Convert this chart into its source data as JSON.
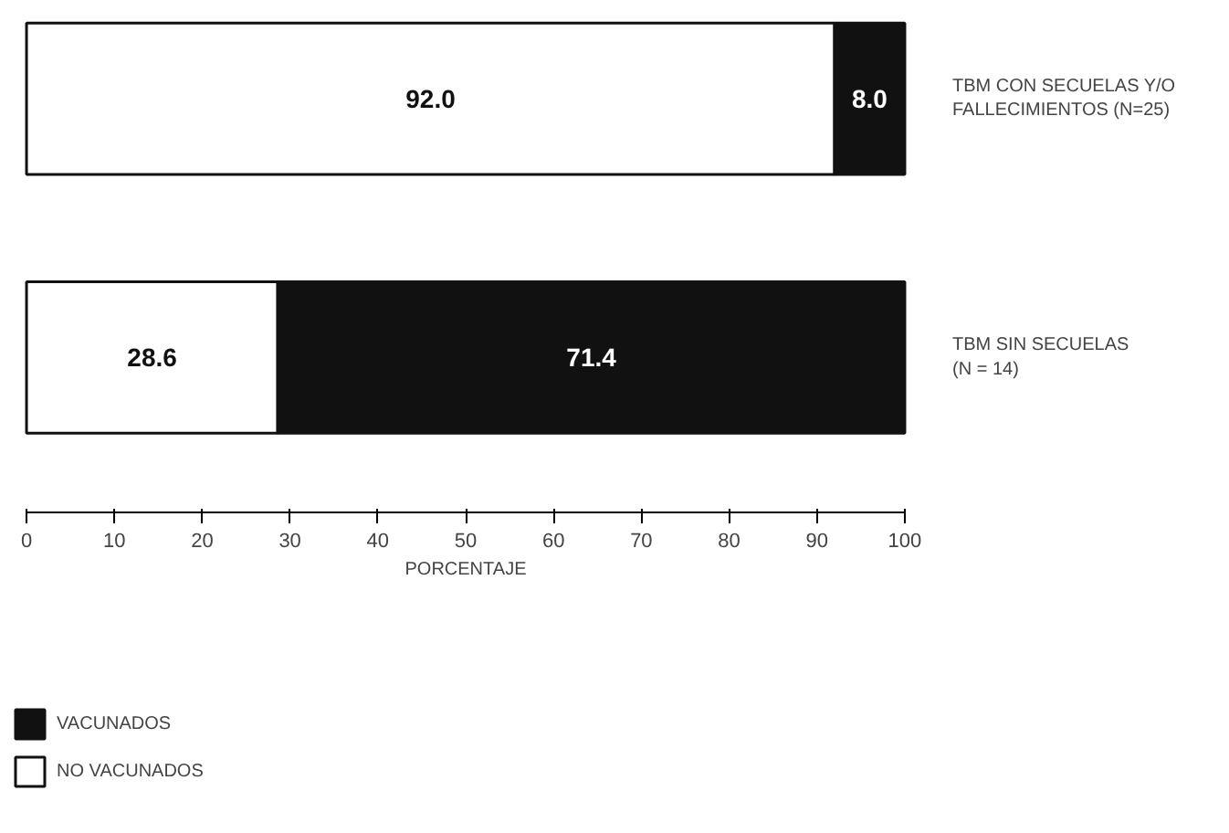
{
  "chart_data": {
    "type": "bar",
    "orientation": "horizontal",
    "stacked": true,
    "categories": [
      "TBM CON SECUELAS Y/O\nFALLECIMIENTOS (N=25)",
      "TBM SIN SECUELAS\n(N = 14)"
    ],
    "series": [
      {
        "name": "NO VACUNADOS",
        "color": "#ffffff",
        "values": [
          92.0,
          28.6
        ],
        "value_labels": [
          "92.0",
          "28.6"
        ]
      },
      {
        "name": "VACUNADOS",
        "color": "#111111",
        "values": [
          8.0,
          71.4
        ],
        "value_labels": [
          "8.0",
          "71.4"
        ]
      }
    ],
    "xlim": [
      0,
      100
    ],
    "xticks": [
      0,
      10,
      20,
      30,
      40,
      50,
      60,
      70,
      80,
      90,
      100
    ],
    "xlabel": "PORCENTAJE",
    "data_labels": true,
    "grid": false,
    "legend": "bottom left"
  }
}
